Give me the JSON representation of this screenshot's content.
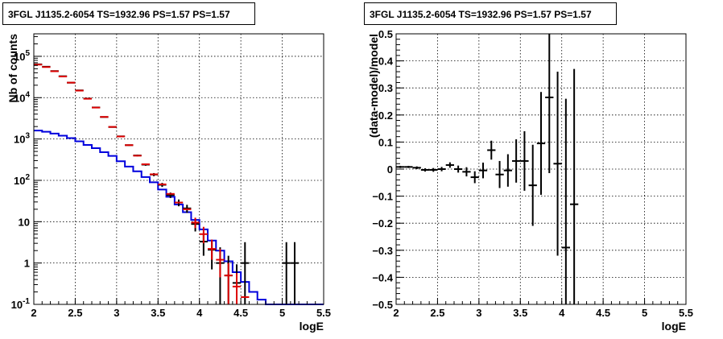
{
  "chart_data": [
    {
      "type": "histogram-with-errorbars",
      "title": "3FGL J1135.2-6054 TS=1932.96 PS=1.57 PS=1.57",
      "xlabel": "logE",
      "ylabel": "Nb of counts",
      "xlim": [
        2,
        5.5
      ],
      "ylim": [
        0.1,
        350000
      ],
      "yscale": "log",
      "grid": true,
      "xticks": [
        "2",
        "2.5",
        "3",
        "3.5",
        "4",
        "4.5",
        "5",
        "5.5"
      ],
      "yticks": [
        {
          "v": 0.1,
          "base": "10",
          "exp": "-1"
        },
        {
          "v": 1,
          "base": "1",
          "exp": ""
        },
        {
          "v": 10,
          "base": "10",
          "exp": ""
        },
        {
          "v": 100,
          "base": "10",
          "exp": "2"
        },
        {
          "v": 1000,
          "base": "10",
          "exp": "3"
        },
        {
          "v": 10000,
          "base": "10",
          "exp": "4"
        },
        {
          "v": 100000,
          "base": "10",
          "exp": "5"
        }
      ],
      "colors": {
        "data": "#000000",
        "model": "#dd0000",
        "source": "#0000dd"
      },
      "bins": [
        2.0,
        2.1,
        2.2,
        2.3,
        2.4,
        2.5,
        2.6,
        2.7,
        2.8,
        2.9,
        3.0,
        3.1,
        3.2,
        3.3,
        3.4,
        3.5,
        3.6,
        3.7,
        3.8,
        3.9,
        4.0,
        4.1,
        4.2,
        4.3,
        4.4,
        4.5,
        4.6,
        4.7,
        4.8,
        4.9,
        5.0,
        5.1,
        5.2,
        5.3,
        5.4,
        5.5
      ],
      "series": [
        {
          "role": "data",
          "color": "#000000",
          "values": [
            64000,
            56000,
            44000,
            33000,
            23000,
            15000,
            9500,
            5800,
            3400,
            1950,
            1160,
            710,
            400,
            240,
            138,
            78,
            44,
            29,
            21,
            8.8,
            3.3,
            2.1,
            1.0,
            0.5,
            0.33,
            1.0,
            0,
            0,
            0,
            0,
            1.0,
            1.0,
            0,
            0,
            0
          ],
          "err_lo": [
            250,
            236,
            210,
            182,
            152,
            122,
            97,
            76,
            58,
            44,
            34,
            27,
            20,
            15,
            12,
            8.8,
            6.6,
            5.4,
            4.6,
            3.0,
            1.8,
            1.4,
            0.9,
            0.4,
            0.3,
            0.9,
            0,
            0,
            0,
            0,
            0.9,
            0.9,
            0,
            0,
            0
          ],
          "err_hi": [
            250,
            236,
            210,
            182,
            152,
            122,
            97,
            76,
            58,
            44,
            34,
            27,
            20,
            15,
            12,
            8.8,
            6.6,
            5.4,
            4.6,
            3.0,
            1.8,
            1.4,
            1.4,
            1.0,
            0.6,
            2.2,
            0,
            0,
            0,
            0,
            2.2,
            2.2,
            0,
            0,
            0
          ]
        },
        {
          "role": "model",
          "color": "#dd0000",
          "values": [
            63000,
            55000,
            43500,
            32500,
            23100,
            14800,
            9400,
            5750,
            3420,
            1960,
            1150,
            710,
            395,
            245,
            140,
            80,
            47,
            29,
            20,
            9.5,
            5.0,
            2.2,
            1.2,
            0.5,
            0.27,
            0.15,
            0.1,
            0.1,
            0.1,
            0.1,
            0.1,
            0.1,
            0.1,
            0.1,
            0.1
          ],
          "err_lo": [
            0,
            0,
            0,
            0,
            0,
            0,
            0,
            0,
            0,
            0,
            0,
            0,
            0,
            0,
            0,
            0,
            0,
            0,
            0,
            2.5,
            2.0,
            1.0,
            0.75,
            0.4,
            0.2,
            0,
            0,
            0,
            0,
            0,
            0,
            0,
            0,
            0,
            0
          ],
          "err_hi": [
            0,
            0,
            0,
            0,
            0,
            0,
            0,
            0,
            0,
            0,
            0,
            0,
            0,
            0,
            0,
            0,
            0,
            0,
            0,
            3.0,
            2.5,
            1.5,
            1.0,
            0.5,
            0.3,
            0,
            0,
            0,
            0,
            0,
            0,
            0,
            0,
            0,
            0
          ]
        },
        {
          "role": "source",
          "color": "#0000dd",
          "values": [
            1600,
            1500,
            1350,
            1200,
            1050,
            880,
            720,
            600,
            480,
            390,
            290,
            215,
            165,
            120,
            90,
            60,
            40,
            26,
            17,
            11,
            6.5,
            3.5,
            2.0,
            1.1,
            0.6,
            0.35,
            0.2,
            0.13,
            0.1,
            0.1,
            0.1,
            0.1,
            0.1,
            0.1,
            0.1
          ]
        }
      ]
    },
    {
      "type": "scatter-with-errorbars",
      "title": "3FGL J1135.2-6054 TS=1932.96 PS=1.57 PS=1.57",
      "xlabel": "logE",
      "ylabel": "(data-model)/model",
      "xlim": [
        2,
        5.5
      ],
      "ylim": [
        -0.5,
        0.5
      ],
      "grid": true,
      "xticks": [
        "2",
        "2.5",
        "3",
        "3.5",
        "4",
        "4.5",
        "5",
        "5.5"
      ],
      "yticks": [
        {
          "v": 0.5,
          "t": "0.5"
        },
        {
          "v": 0.4,
          "t": "0.4"
        },
        {
          "v": 0.3,
          "t": "0.3"
        },
        {
          "v": 0.2,
          "t": "0.2"
        },
        {
          "v": 0.1,
          "t": "0.1"
        },
        {
          "v": 0,
          "t": "0"
        },
        {
          "v": -0.1,
          "t": "−0.1"
        },
        {
          "v": -0.2,
          "t": "−0.2"
        },
        {
          "v": -0.3,
          "t": "−0.3"
        },
        {
          "v": -0.4,
          "t": "−0.4"
        },
        {
          "v": -0.5,
          "t": "−0.5"
        }
      ],
      "color": "#000000",
      "points": [
        {
          "x": 2.05,
          "y": 0.008,
          "e": 0.004
        },
        {
          "x": 2.15,
          "y": 0.008,
          "e": 0.004
        },
        {
          "x": 2.25,
          "y": 0.005,
          "e": 0.005
        },
        {
          "x": 2.35,
          "y": -0.003,
          "e": 0.006
        },
        {
          "x": 2.45,
          "y": -0.003,
          "e": 0.007
        },
        {
          "x": 2.55,
          "y": 0.0,
          "e": 0.008
        },
        {
          "x": 2.65,
          "y": 0.015,
          "e": 0.01
        },
        {
          "x": 2.75,
          "y": 0.0,
          "e": 0.013
        },
        {
          "x": 2.85,
          "y": -0.01,
          "e": 0.017
        },
        {
          "x": 2.95,
          "y": -0.03,
          "e": 0.022
        },
        {
          "x": 3.05,
          "y": -0.005,
          "e": 0.029
        },
        {
          "x": 3.15,
          "y": 0.07,
          "e": 0.035
        },
        {
          "x": 3.25,
          "y": -0.02,
          "e": 0.05
        },
        {
          "x": 3.35,
          "y": -0.005,
          "e": 0.06
        },
        {
          "x": 3.45,
          "y": 0.03,
          "e": 0.08
        },
        {
          "x": 3.55,
          "y": 0.03,
          "e": 0.11
        },
        {
          "x": 3.65,
          "y": -0.06,
          "e": 0.15
        },
        {
          "x": 3.75,
          "y": 0.095,
          "e": 0.19
        },
        {
          "x": 3.85,
          "y": 0.265,
          "e": 0.28
        },
        {
          "x": 3.95,
          "y": 0.02,
          "e": 0.34
        },
        {
          "x": 4.05,
          "y": -0.29,
          "e": 0.55
        },
        {
          "x": 4.15,
          "y": -0.13,
          "e": 0.5
        }
      ]
    }
  ]
}
